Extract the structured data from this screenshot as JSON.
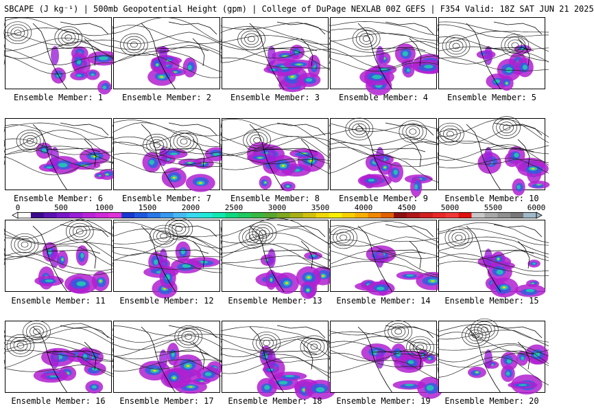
{
  "header": {
    "title": "SBCAPE (J kg⁻¹) | 500mb Geopotential Height (gpm) | College of DuPage NEXLAB 00Z GEFS | F354 Valid: 18Z SAT JUN 21 2025"
  },
  "members": [
    {
      "label": "Ensemble Member: 1"
    },
    {
      "label": "Ensemble Member: 2"
    },
    {
      "label": "Ensemble Member: 3"
    },
    {
      "label": "Ensemble Member: 4"
    },
    {
      "label": "Ensemble Member: 5"
    },
    {
      "label": "Ensemble Member: 6"
    },
    {
      "label": "Ensemble Member: 7"
    },
    {
      "label": "Ensemble Member: 8"
    },
    {
      "label": "Ensemble Member: 9"
    },
    {
      "label": "Ensemble Member: 10"
    },
    {
      "label": "Ensemble Member: 11"
    },
    {
      "label": "Ensemble Member: 12"
    },
    {
      "label": "Ensemble Member: 13"
    },
    {
      "label": "Ensemble Member: 14"
    },
    {
      "label": "Ensemble Member: 15"
    },
    {
      "label": "Ensemble Member: 16"
    },
    {
      "label": "Ensemble Member: 17"
    },
    {
      "label": "Ensemble Member: 18"
    },
    {
      "label": "Ensemble Member: 19"
    },
    {
      "label": "Ensemble Member: 20"
    }
  ],
  "colorbar": {
    "ticks": [
      "0",
      "500",
      "1000",
      "1500",
      "2000",
      "2500",
      "3000",
      "3500",
      "4000",
      "4500",
      "5000",
      "5500",
      "6000"
    ],
    "colors": [
      "#ffffff",
      "#3a0a8c",
      "#5a12b0",
      "#7a18c8",
      "#9a1fd8",
      "#b825d8",
      "#d02ad8",
      "#e030d8",
      "#1838d0",
      "#1e58e0",
      "#2a78e8",
      "#3898ee",
      "#48b8f2",
      "#38d8f0",
      "#20e8d8",
      "#10e8b0",
      "#10d880",
      "#20c860",
      "#38b840",
      "#58a830",
      "#80a820",
      "#a8b018",
      "#d0c010",
      "#f0d808",
      "#f8f000",
      "#f8d000",
      "#f8b000",
      "#f08800",
      "#e06000",
      "#8c1010",
      "#b01818",
      "#d02020",
      "#e82828",
      "#f03838",
      "#e01010",
      "#c8c8c8",
      "#a8a8a8",
      "#909090",
      "#787878",
      "#a0b8c8"
    ]
  }
}
